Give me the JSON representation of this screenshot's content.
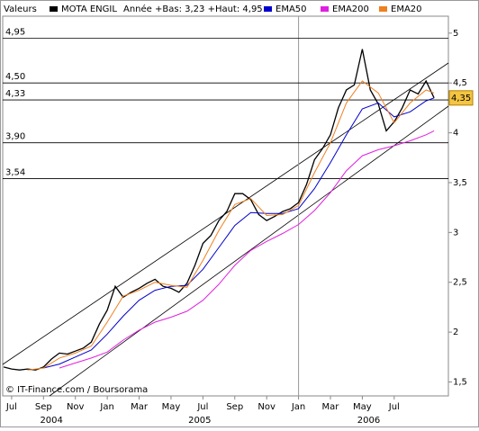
{
  "chart_data": {
    "type": "line",
    "header_label": "Valeurs",
    "range_text": "Année +Bas: 3,23 +Haut: 4,95",
    "footer": "© IT-Finance.com / Boursorama",
    "xlim": [
      -0.56,
      27.4
    ],
    "ylim": [
      1.36,
      5.17
    ],
    "xticks": [
      {
        "value": 0,
        "label": "Jul"
      },
      {
        "value": 2,
        "label": "Sep"
      },
      {
        "value": 4,
        "label": "Nov"
      },
      {
        "value": 6,
        "label": "Jan"
      },
      {
        "value": 8,
        "label": "Mar"
      },
      {
        "value": 10,
        "label": "May"
      },
      {
        "value": 12,
        "label": "Jul"
      },
      {
        "value": 14,
        "label": "Sep"
      },
      {
        "value": 16,
        "label": "Nov"
      },
      {
        "value": 18,
        "label": "Jan"
      },
      {
        "value": 20,
        "label": "Mar"
      },
      {
        "value": 22,
        "label": "May"
      },
      {
        "value": 24,
        "label": "Jul"
      }
    ],
    "year_labels": [
      {
        "value": 2.5,
        "label": "2004"
      },
      {
        "value": 11.8,
        "label": "2005"
      },
      {
        "value": 22.4,
        "label": "2006"
      }
    ],
    "yticks": [
      5,
      {
        "value": 4.5,
        "label": "4,5"
      },
      4,
      {
        "value": 3.5,
        "label": "3,5"
      },
      3,
      {
        "value": 2.5,
        "label": "2,5"
      },
      2,
      {
        "value": 1.5,
        "label": "1,5"
      }
    ],
    "vgrid": [
      18
    ],
    "levels": [
      {
        "value": 4.95,
        "label": "4,95"
      },
      {
        "value": 4.5,
        "label": "4,50"
      },
      {
        "value": 4.33,
        "label": "4,33"
      },
      {
        "value": 3.9,
        "label": "3,90"
      },
      {
        "value": 3.54,
        "label": "3,54"
      }
    ],
    "last_price": {
      "value": 4.35,
      "label": "4,35"
    },
    "series": [
      {
        "name": "MOTA ENGIL",
        "color": "#000000",
        "x": [
          -0.5,
          0,
          0.5,
          1,
          1.5,
          2,
          2.5,
          3,
          3.5,
          4,
          4.5,
          5,
          5.5,
          6,
          6.5,
          7,
          7.5,
          8,
          8.5,
          9,
          9.5,
          10,
          10.5,
          11,
          11.5,
          12,
          12.5,
          13,
          13.5,
          14,
          14.5,
          15,
          15.5,
          16,
          16.5,
          17,
          17.5,
          18,
          18.5,
          19,
          19.5,
          20,
          20.5,
          21,
          21.5,
          22,
          22.5,
          23,
          23.5,
          24,
          24.5,
          25,
          25.5,
          26,
          26.5
        ],
        "values": [
          1.65,
          1.63,
          1.62,
          1.63,
          1.62,
          1.65,
          1.73,
          1.79,
          1.78,
          1.81,
          1.84,
          1.9,
          2.08,
          2.22,
          2.46,
          2.35,
          2.4,
          2.44,
          2.49,
          2.53,
          2.46,
          2.44,
          2.4,
          2.49,
          2.67,
          2.89,
          2.97,
          3.12,
          3.21,
          3.39,
          3.39,
          3.33,
          3.18,
          3.12,
          3.16,
          3.21,
          3.24,
          3.3,
          3.48,
          3.73,
          3.84,
          3.98,
          4.25,
          4.43,
          4.48,
          4.84,
          4.43,
          4.29,
          4.02,
          4.11,
          4.25,
          4.43,
          4.39,
          4.52,
          4.35
        ]
      },
      {
        "name": "EMA50",
        "color": "#0000cc",
        "x": [
          2,
          3,
          4,
          5,
          6,
          7,
          8,
          9,
          10,
          11,
          12,
          13,
          14,
          15,
          16,
          17,
          18,
          19,
          20,
          21,
          22,
          23,
          24,
          25,
          26,
          26.5
        ],
        "values": [
          1.64,
          1.68,
          1.75,
          1.82,
          1.98,
          2.16,
          2.32,
          2.42,
          2.46,
          2.47,
          2.63,
          2.85,
          3.07,
          3.2,
          3.19,
          3.19,
          3.24,
          3.44,
          3.7,
          3.98,
          4.24,
          4.3,
          4.16,
          4.21,
          4.32,
          4.35
        ]
      },
      {
        "name": "EMA200",
        "color": "#e020e0",
        "x": [
          3,
          4,
          5,
          6,
          7,
          8,
          9,
          10,
          11,
          12,
          13,
          14,
          15,
          16,
          17,
          18,
          19,
          20,
          21,
          22,
          23,
          24,
          25,
          26,
          26.5
        ],
        "values": [
          1.64,
          1.69,
          1.74,
          1.8,
          1.92,
          2.02,
          2.1,
          2.15,
          2.21,
          2.32,
          2.48,
          2.67,
          2.82,
          2.91,
          2.99,
          3.08,
          3.22,
          3.4,
          3.62,
          3.77,
          3.83,
          3.87,
          3.92,
          3.98,
          4.02
        ]
      },
      {
        "name": "EMA20",
        "color": "#f08020",
        "x": [
          1,
          2,
          3,
          4,
          5,
          6,
          7,
          8,
          9,
          10,
          11,
          12,
          13,
          14,
          15,
          16,
          17,
          18,
          19,
          20,
          21,
          22,
          23,
          24,
          25,
          26,
          26.5
        ],
        "values": [
          1.62,
          1.64,
          1.74,
          1.79,
          1.86,
          2.1,
          2.36,
          2.42,
          2.5,
          2.47,
          2.45,
          2.72,
          3.02,
          3.28,
          3.34,
          3.17,
          3.18,
          3.27,
          3.6,
          3.9,
          4.3,
          4.52,
          4.4,
          4.1,
          4.3,
          4.43,
          4.4
        ]
      }
    ]
  }
}
